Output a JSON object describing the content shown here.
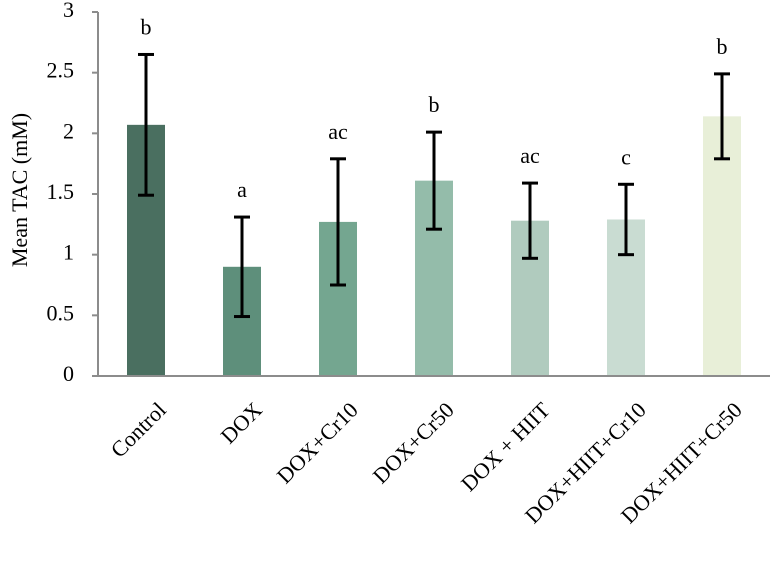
{
  "chart_data": {
    "type": "bar",
    "title": "",
    "xlabel": "",
    "ylabel": "Mean TAC (mM)",
    "ylim": [
      0,
      3
    ],
    "yticks": [
      0,
      0.5,
      1,
      1.5,
      2,
      2.5,
      3
    ],
    "ytick_labels": [
      "0",
      "0.5",
      "1",
      "1.5",
      "2",
      "2.5",
      "3"
    ],
    "grid": false,
    "legend": "none",
    "categories": [
      "Control",
      "DOX",
      "DOX+Cr10",
      "DOX+Cr50",
      "DOX + HIIT",
      "DOX+HIIT+Cr10",
      "DOX+HIIT+Cr50"
    ],
    "values": [
      2.07,
      0.9,
      1.27,
      1.61,
      1.28,
      1.29,
      2.14
    ],
    "error": [
      0.58,
      0.41,
      0.52,
      0.4,
      0.31,
      0.29,
      0.35
    ],
    "significance_labels": [
      "b",
      "a",
      "ac",
      "b",
      "ac",
      "c",
      "b"
    ],
    "bar_colors": [
      "#4a6f60",
      "#5e8f7b",
      "#74a690",
      "#94bcaa",
      "#b0cbbe",
      "#c9dcd2",
      "#e8efd8"
    ],
    "axis_color": "#8c8c8c"
  }
}
